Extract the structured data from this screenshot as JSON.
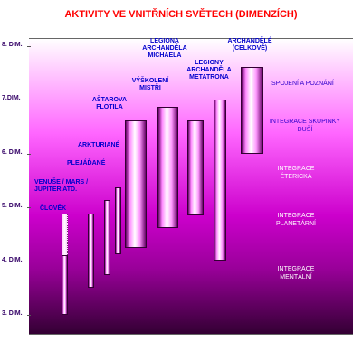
{
  "title": "AKTIVITY VE VNITŘNÍCH SVĚTECH (DIMENZÍCH)",
  "axis": {
    "ticks": [
      {
        "label": "8. DIM.",
        "level": 8
      },
      {
        "label": "7.DIM.",
        "level": 7
      },
      {
        "label": "6. DIM.",
        "level": 6
      },
      {
        "label": "5. DIM.",
        "level": 5
      },
      {
        "label": "4. DIM.",
        "level": 4
      },
      {
        "label": "3. DIM.",
        "level": 3
      }
    ]
  },
  "beings": [
    {
      "label": "ČLOVĚK",
      "range": [
        3.0,
        4.15
      ],
      "extends_to": 4.85
    },
    {
      "label": "VENUŠE / MARS / JUPITER ATD.",
      "range": [
        3.5,
        4.85
      ]
    },
    {
      "label": "PLEJÁĎANÉ",
      "range": [
        3.75,
        5.15
      ]
    },
    {
      "label": "ARKTURIANÉ",
      "range": [
        4.05,
        5.4
      ]
    },
    {
      "label": "AŠTAROVA FLOTILA",
      "range": [
        4.25,
        6.6
      ]
    },
    {
      "label": "VÝŠKOLENÍ MISTŘI",
      "range": [
        4.6,
        6.85
      ]
    },
    {
      "label": "LEGIONA ARCHANDĚLA MICHAELA",
      "range": [
        4.85,
        6.6
      ]
    },
    {
      "label": "LEGIONY ARCHANDĚLA METATRONA",
      "range": [
        3.97,
        7.0
      ]
    },
    {
      "label": "ARCHANDĚLÉ (CELKOVĚ)",
      "range": [
        6.0,
        7.6
      ]
    }
  ],
  "integration_labels": [
    "SPOJENÍ A POZNÁNÍ",
    "INTEGRACE SKUPINKY DUŠÍ",
    "INTEGRACE ÉTERICKÁ",
    "INTEGRACE PLANETÁRNÍ",
    "INTEGRACE MENTÁLNÍ"
  ],
  "colors": {
    "title": "#ff0000",
    "labels": "#0000cc",
    "background_top": "#ffffff",
    "background_bottom": "#330033"
  }
}
